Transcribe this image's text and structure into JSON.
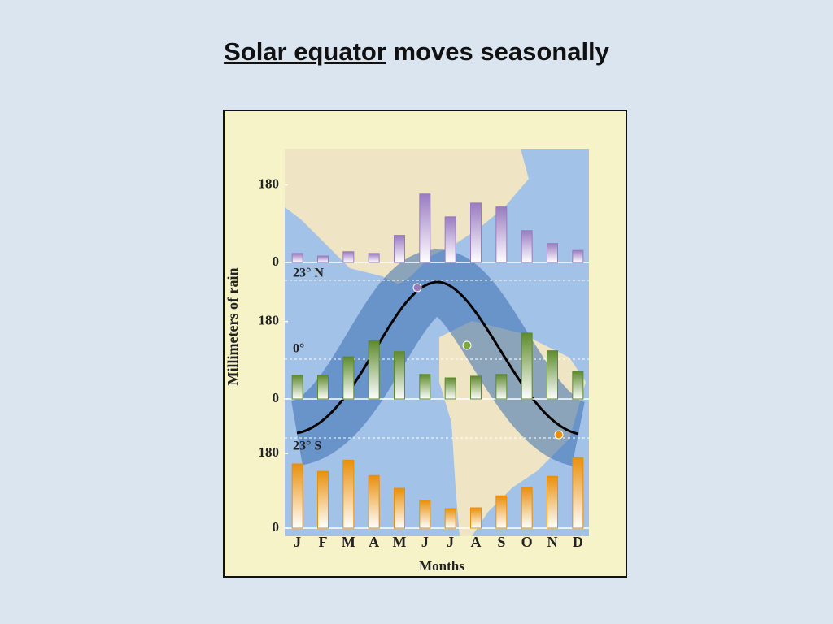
{
  "title_underlined": "Solar equator",
  "title_rest": "moves seasonally",
  "y_label": "Millimeters of rain",
  "x_label": "Months",
  "annotations": [
    "23° N",
    "0°",
    "23° S"
  ],
  "chart_data": [
    {
      "type": "bar",
      "categories": [
        null,
        null,
        null,
        null,
        null,
        null,
        null,
        null,
        null,
        null,
        null,
        null
      ],
      "series": [
        {
          "color": "#9a7bc0",
          "values": [
            21,
            15,
            25,
            21,
            63,
            159,
            106,
            138,
            129,
            74,
            44,
            28
          ]
        }
      ],
      "ylim": [
        0,
        200
      ],
      "yticks": [
        0,
        180
      ]
    },
    {
      "type": "bar",
      "categories": [
        null,
        null,
        null,
        null,
        null,
        null,
        null,
        null,
        null,
        null,
        null,
        null
      ],
      "series": [
        {
          "color": "#5e8a2e",
          "values": [
            55,
            55,
            98,
            135,
            110,
            57,
            49,
            53,
            57,
            153,
            112,
            64
          ]
        }
      ],
      "ylim": [
        0,
        200
      ],
      "yticks": [
        0,
        180
      ]
    },
    {
      "type": "bar",
      "categories": [
        "J",
        "F",
        "M",
        "A",
        "M",
        "J",
        "J",
        "A",
        "S",
        "O",
        "N",
        "D"
      ],
      "series": [
        {
          "color": "#e8900c",
          "values": [
            155,
            137,
            164,
            127,
            96,
            67,
            47,
            49,
            78,
            98,
            125,
            170
          ]
        }
      ],
      "ylim": [
        0,
        200
      ],
      "yticks": [
        0,
        180
      ]
    }
  ]
}
